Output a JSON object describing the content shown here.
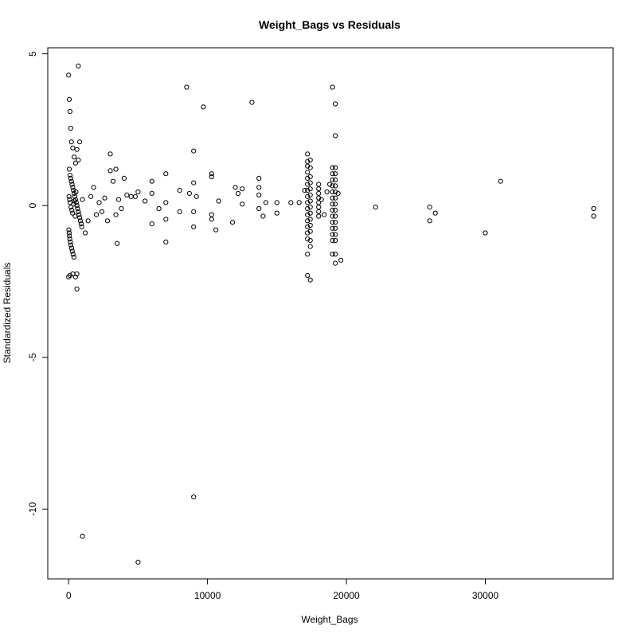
{
  "chart_data": {
    "type": "scatter",
    "title": "Weight_Bags vs Residuals",
    "xlabel": "Weight_Bags",
    "ylabel": "Standardized Residuals",
    "xlim": [
      -1500,
      39200
    ],
    "ylim": [
      -12.3,
      5.2
    ],
    "xticks": [
      0,
      10000,
      20000,
      30000
    ],
    "yticks": [
      -10,
      -5,
      0,
      5
    ],
    "xtick_labels": [
      "0",
      "10000",
      "20000",
      "30000"
    ],
    "ytick_labels": [
      "-10",
      "-5",
      "0",
      "5"
    ],
    "grid": false,
    "marker": "open-circle",
    "colors": {
      "points": "#000000",
      "background": "#ffffff"
    },
    "points": [
      [
        0,
        4.3
      ],
      [
        50,
        3.5
      ],
      [
        100,
        3.1
      ],
      [
        150,
        2.55
      ],
      [
        200,
        2.1
      ],
      [
        300,
        1.9
      ],
      [
        400,
        1.6
      ],
      [
        500,
        1.4
      ],
      [
        600,
        1.85
      ],
      [
        700,
        1.5
      ],
      [
        800,
        2.1
      ],
      [
        50,
        1.2
      ],
      [
        100,
        1.0
      ],
      [
        150,
        0.9
      ],
      [
        200,
        0.8
      ],
      [
        250,
        0.7
      ],
      [
        300,
        0.6
      ],
      [
        350,
        0.5
      ],
      [
        400,
        0.4
      ],
      [
        450,
        0.3
      ],
      [
        500,
        0.2
      ],
      [
        550,
        0.1
      ],
      [
        600,
        0.0
      ],
      [
        650,
        -0.1
      ],
      [
        700,
        -0.2
      ],
      [
        750,
        -0.3
      ],
      [
        800,
        -0.4
      ],
      [
        850,
        -0.5
      ],
      [
        900,
        -0.6
      ],
      [
        950,
        -0.7
      ],
      [
        20,
        -0.8
      ],
      [
        40,
        -0.9
      ],
      [
        60,
        -1.0
      ],
      [
        80,
        -1.1
      ],
      [
        120,
        -1.2
      ],
      [
        160,
        -1.3
      ],
      [
        220,
        -1.4
      ],
      [
        260,
        -1.5
      ],
      [
        320,
        -1.6
      ],
      [
        380,
        -1.7
      ],
      [
        30,
        0.3
      ],
      [
        70,
        0.2
      ],
      [
        110,
        0.1
      ],
      [
        170,
        -0.05
      ],
      [
        230,
        -0.15
      ],
      [
        290,
        -0.25
      ],
      [
        350,
        0.05
      ],
      [
        410,
        0.15
      ],
      [
        470,
        -0.35
      ],
      [
        530,
        0.45
      ],
      [
        0,
        -2.35
      ],
      [
        100,
        -2.3
      ],
      [
        300,
        -2.25
      ],
      [
        500,
        -2.35
      ],
      [
        600,
        -2.75
      ],
      [
        600,
        -2.25
      ],
      [
        700,
        4.6
      ],
      [
        1000,
        0.2
      ],
      [
        1200,
        -0.9
      ],
      [
        1400,
        -0.5
      ],
      [
        1600,
        0.3
      ],
      [
        1800,
        0.6
      ],
      [
        2000,
        -0.3
      ],
      [
        2200,
        0.1
      ],
      [
        2400,
        -0.2
      ],
      [
        2600,
        0.25
      ],
      [
        2800,
        -0.5
      ],
      [
        3000,
        1.7
      ],
      [
        3000,
        1.15
      ],
      [
        3200,
        0.8
      ],
      [
        3400,
        1.2
      ],
      [
        3400,
        -0.3
      ],
      [
        3500,
        -1.25
      ],
      [
        3600,
        0.2
      ],
      [
        3800,
        -0.1
      ],
      [
        4000,
        0.9
      ],
      [
        4200,
        0.35
      ],
      [
        4500,
        0.3
      ],
      [
        4800,
        0.3
      ],
      [
        5000,
        0.45
      ],
      [
        1000,
        -10.9
      ],
      [
        5000,
        -11.75
      ],
      [
        5500,
        0.15
      ],
      [
        6000,
        -0.6
      ],
      [
        6000,
        0.8
      ],
      [
        6000,
        0.4
      ],
      [
        6500,
        -0.1
      ],
      [
        7000,
        -1.2
      ],
      [
        7000,
        1.05
      ],
      [
        7000,
        0.1
      ],
      [
        7000,
        -0.45
      ],
      [
        8000,
        -0.2
      ],
      [
        8000,
        0.5
      ],
      [
        8500,
        3.9
      ],
      [
        8700,
        0.4
      ],
      [
        9000,
        -9.6
      ],
      [
        9000,
        1.8
      ],
      [
        9000,
        -0.7
      ],
      [
        9000,
        -0.2
      ],
      [
        9000,
        0.75
      ],
      [
        9200,
        0.3
      ],
      [
        9700,
        3.25
      ],
      [
        10300,
        1.05
      ],
      [
        10300,
        -0.3
      ],
      [
        10300,
        -0.45
      ],
      [
        10300,
        0.95
      ],
      [
        10600,
        -0.8
      ],
      [
        10800,
        0.15
      ],
      [
        11800,
        -0.55
      ],
      [
        12000,
        0.6
      ],
      [
        12200,
        0.4
      ],
      [
        12500,
        0.55
      ],
      [
        12500,
        0.05
      ],
      [
        13200,
        3.4
      ],
      [
        13700,
        0.6
      ],
      [
        13700,
        0.9
      ],
      [
        13700,
        0.35
      ],
      [
        13700,
        -0.1
      ],
      [
        14000,
        -0.35
      ],
      [
        14200,
        0.1
      ],
      [
        15000,
        0.1
      ],
      [
        15000,
        -0.25
      ],
      [
        16000,
        0.1
      ],
      [
        16600,
        0.1
      ],
      [
        17000,
        0.5
      ],
      [
        17200,
        1.7
      ],
      [
        17200,
        1.45
      ],
      [
        17200,
        1.3
      ],
      [
        17200,
        1.1
      ],
      [
        17200,
        0.9
      ],
      [
        17200,
        0.7
      ],
      [
        17200,
        0.5
      ],
      [
        17200,
        0.3
      ],
      [
        17200,
        0.1
      ],
      [
        17200,
        -0.1
      ],
      [
        17200,
        -0.3
      ],
      [
        17200,
        -0.5
      ],
      [
        17200,
        -0.7
      ],
      [
        17200,
        -0.9
      ],
      [
        17200,
        -1.1
      ],
      [
        17200,
        -1.6
      ],
      [
        17200,
        -2.3
      ],
      [
        17400,
        -2.45
      ],
      [
        17400,
        1.5
      ],
      [
        17400,
        1.25
      ],
      [
        17400,
        0.95
      ],
      [
        17400,
        0.75
      ],
      [
        17400,
        0.55
      ],
      [
        17400,
        0.35
      ],
      [
        17400,
        0.15
      ],
      [
        17400,
        -0.05
      ],
      [
        17400,
        -0.25
      ],
      [
        17400,
        -0.45
      ],
      [
        17400,
        -0.65
      ],
      [
        17400,
        -0.85
      ],
      [
        17400,
        -1.15
      ],
      [
        17400,
        -1.35
      ],
      [
        18000,
        0.7
      ],
      [
        18000,
        0.55
      ],
      [
        18000,
        0.4
      ],
      [
        18000,
        0.25
      ],
      [
        18000,
        0.1
      ],
      [
        18000,
        -0.05
      ],
      [
        18000,
        -0.2
      ],
      [
        18000,
        -0.35
      ],
      [
        18200,
        0.2
      ],
      [
        18400,
        -0.3
      ],
      [
        18600,
        0.45
      ],
      [
        18800,
        0.7
      ],
      [
        19000,
        3.9
      ],
      [
        19000,
        1.25
      ],
      [
        19000,
        1.05
      ],
      [
        19000,
        0.85
      ],
      [
        19000,
        0.65
      ],
      [
        19000,
        0.45
      ],
      [
        19000,
        0.25
      ],
      [
        19000,
        0.05
      ],
      [
        19000,
        -0.15
      ],
      [
        19000,
        -0.35
      ],
      [
        19000,
        -0.55
      ],
      [
        19000,
        -0.75
      ],
      [
        19000,
        -0.95
      ],
      [
        19000,
        -1.15
      ],
      [
        19000,
        -1.6
      ],
      [
        19200,
        3.35
      ],
      [
        19200,
        2.3
      ],
      [
        19200,
        1.25
      ],
      [
        19200,
        1.05
      ],
      [
        19200,
        0.85
      ],
      [
        19200,
        0.65
      ],
      [
        19200,
        0.45
      ],
      [
        19200,
        0.25
      ],
      [
        19200,
        0.05
      ],
      [
        19200,
        -0.15
      ],
      [
        19200,
        -0.35
      ],
      [
        19200,
        -0.55
      ],
      [
        19200,
        -0.75
      ],
      [
        19200,
        -0.95
      ],
      [
        19200,
        -1.15
      ],
      [
        19200,
        -1.6
      ],
      [
        19200,
        -1.9
      ],
      [
        19600,
        -1.8
      ],
      [
        19400,
        0.4
      ],
      [
        22100,
        -0.05
      ],
      [
        26000,
        -0.05
      ],
      [
        26000,
        -0.5
      ],
      [
        26400,
        -0.25
      ],
      [
        30000,
        -0.9
      ],
      [
        31100,
        0.8
      ],
      [
        37800,
        -0.1
      ],
      [
        37800,
        -0.35
      ]
    ]
  }
}
